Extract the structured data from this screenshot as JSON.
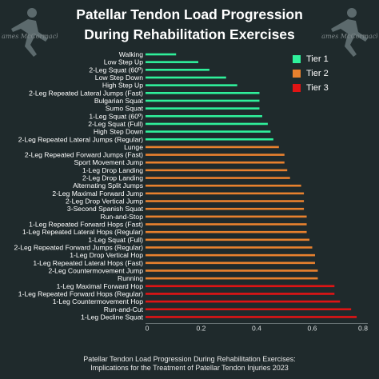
{
  "header": {
    "title_line1": "Patellar Tendon Load Progression",
    "title_line2": "During Rehabilitation Exercises",
    "logo_text": "James McCormack"
  },
  "footer": {
    "line1": "Patellar Tendon Load Progression During Rehabilitation Exercises:",
    "line2": "Implications for the Treatment of Patellar Tendon Injuries 2023"
  },
  "colors": {
    "background": "#1f2a2c",
    "tier1": "#2ff09b",
    "tier2": "#e8812e",
    "tier3": "#e01414",
    "text": "#ffffff"
  },
  "chart_data": {
    "type": "bar",
    "orientation": "horizontal",
    "xlim": [
      0,
      0.8
    ],
    "xticks": [
      "0",
      "0.2",
      "0.4",
      "0.6",
      "0.8"
    ],
    "legend": {
      "placement": "top-right",
      "entries": [
        "Tier 1",
        "Tier 2",
        "Tier 3"
      ]
    },
    "grid": false,
    "categories": [
      "Walking",
      "Low Step Up",
      "2-Leg Squat (60º)",
      "Low Step Down",
      "High Step Up",
      "2-Leg Repeated Lateral Jumps (Fast)",
      "Bulgarian Squat",
      "Sumo Squat",
      "1-Leg Squat (60º)",
      "2-Leg Squat (Full)",
      "High Step Down",
      "2-Leg Repeated Lateral Jumps (Regular)",
      "Lunge",
      "2-Leg Repeated Forward Jumps (Fast)",
      "Sport Movement Jump",
      "1-Leg Drop Landing",
      "2-Leg Drop Landing",
      "Alternating Split Jumps",
      "2-Leg Maximal Forward Jump",
      "2-Leg Drop Vertical Jump",
      "3-Second Spanish Squat",
      "Run-and-Stop",
      "1-Leg Repeated Forward Hops (Fast)",
      "1-Leg Repeated Lateral Hops (Regular)",
      "1-Leg Squat (Full)",
      "2-Leg Repeated Forward Jumps (Regular)",
      "1-Leg Drop Vertical Hop",
      "1-Leg Repeated Lateral Hops (Fast)",
      "2-Leg Countermovement Jump",
      "Running",
      "1-Leg Maximal Forward Hop",
      "1-Leg Repeated Forward Hops (Regular)",
      "1-Leg Countermovement Hop",
      "Run-and-Cut",
      "1-Leg Decline Squat"
    ],
    "values": [
      0.11,
      0.19,
      0.23,
      0.29,
      0.33,
      0.41,
      0.41,
      0.41,
      0.42,
      0.44,
      0.45,
      0.46,
      0.48,
      0.5,
      0.5,
      0.51,
      0.52,
      0.56,
      0.57,
      0.57,
      0.57,
      0.58,
      0.58,
      0.58,
      0.59,
      0.6,
      0.61,
      0.61,
      0.62,
      0.62,
      0.68,
      0.68,
      0.7,
      0.74,
      0.76
    ],
    "tiers": [
      1,
      1,
      1,
      1,
      1,
      1,
      1,
      1,
      1,
      1,
      1,
      1,
      2,
      2,
      2,
      2,
      2,
      2,
      2,
      2,
      2,
      2,
      2,
      2,
      2,
      2,
      2,
      2,
      2,
      2,
      3,
      3,
      3,
      3,
      3
    ]
  }
}
